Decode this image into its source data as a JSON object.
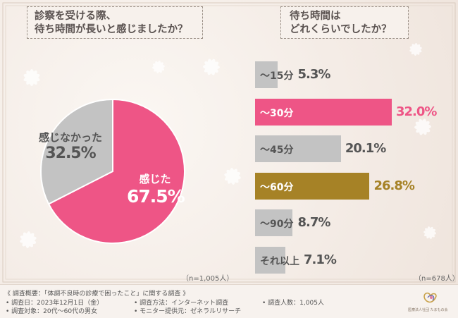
{
  "left_title": {
    "line1": "診察を受ける際、",
    "line2": "待ち時間が長いと感じましたか？"
  },
  "right_title": {
    "line1": "待ち時間は",
    "line2": "どれくらいでしたか？"
  },
  "left_n": "（n=1,005人）",
  "right_n": "（n=678人）",
  "colors": {
    "pink": "#ee5586",
    "gray": "#c3c3c3",
    "gold": "#a68226",
    "text": "#555555"
  },
  "chart_data": [
    {
      "type": "pie",
      "title": "診察を受ける際、待ち時間が長いと感じましたか？",
      "slices": [
        {
          "label": "感じた",
          "value": 67.5,
          "display": "67.5%"
        },
        {
          "label": "感じなかった",
          "value": 32.5,
          "display": "32.5%"
        }
      ],
      "note": "（n=1,005人）"
    },
    {
      "type": "bar",
      "orientation": "horizontal",
      "title": "待ち時間はどれくらいでしたか？",
      "categories": [
        "〜15分",
        "〜30分",
        "〜45分",
        "〜60分",
        "〜90分",
        "それ以上"
      ],
      "values": [
        5.3,
        32.0,
        20.1,
        26.8,
        8.7,
        7.1
      ],
      "display": [
        "5.3%",
        "32.0%",
        "20.1%",
        "26.8%",
        "8.7%",
        "7.1%"
      ],
      "note": "（n=678人）"
    }
  ],
  "footer": {
    "overview": "《 調査概要：「体調不良時の診療で困ったこと」に関する調査 》",
    "date": "• 調査日：2023年12月1日（金）",
    "method": "• 調査方法：インターネット調査",
    "count": "• 調査人数：1,005人",
    "target": "• 調査対象：20代〜60代の男女",
    "provider": "• モニター提供元：ゼネラルリサーチ",
    "logo_text": "医療法人社団 たまもの会"
  }
}
